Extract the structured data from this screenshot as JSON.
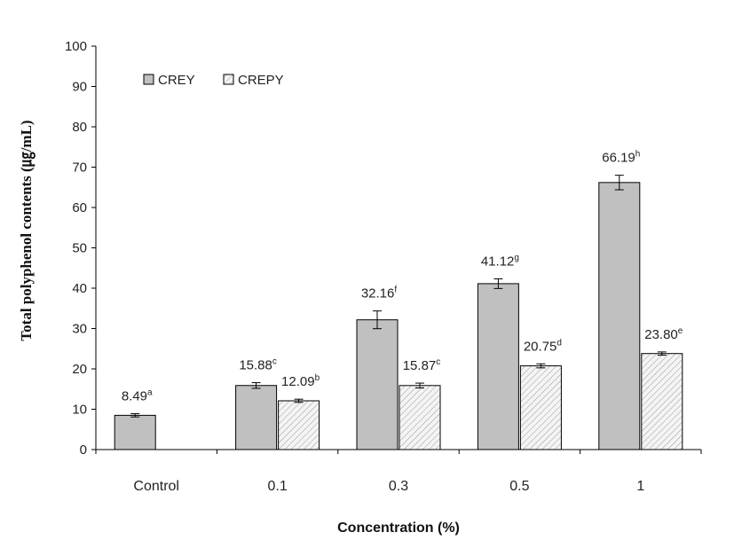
{
  "chart_data": {
    "type": "bar",
    "title": "",
    "xlabel": "Concentration (%)",
    "ylabel": "Total polyphenol contents (㎍/mL)",
    "ylim": [
      0,
      100
    ],
    "yticks": [
      0,
      10,
      20,
      30,
      40,
      50,
      60,
      70,
      80,
      90,
      100
    ],
    "categories": [
      "Control",
      "0.1",
      "0.3",
      "0.5",
      "1"
    ],
    "legend_position": "top-left",
    "grid": false,
    "series": [
      {
        "name": "CREY",
        "pattern": "solid",
        "color": "#c0c0c0",
        "values": [
          8.49,
          15.88,
          32.16,
          41.12,
          66.19
        ],
        "errors": [
          0.4,
          0.7,
          2.2,
          1.2,
          1.8
        ],
        "labels": [
          "8.49",
          "15.88",
          "32.16",
          "41.12",
          "66.19"
        ],
        "superscripts": [
          "a",
          "c",
          "f",
          "g",
          "h"
        ]
      },
      {
        "name": "CREPY",
        "pattern": "hatched",
        "color": "#f2f2f2",
        "values": [
          null,
          12.09,
          15.87,
          20.75,
          23.8
        ],
        "errors": [
          null,
          0.4,
          0.6,
          0.5,
          0.4
        ],
        "labels": [
          "",
          "12.09",
          "15.87",
          "20.75",
          "23.80"
        ],
        "superscripts": [
          "",
          "b",
          "c",
          "d",
          "e"
        ]
      }
    ]
  }
}
